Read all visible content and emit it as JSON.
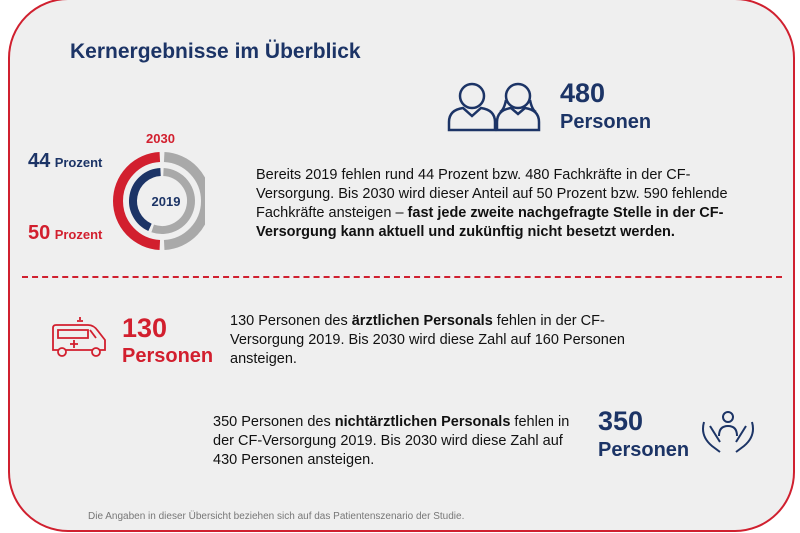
{
  "title": "Kernergebnisse im Überblick",
  "summary": {
    "count": "480",
    "unit": "Personen",
    "donut": {
      "outer_label": "2030",
      "inner_label": "2019",
      "label_2019": {
        "value": "44",
        "unit": "Prozent"
      },
      "label_2030": {
        "value": "50",
        "unit": "Prozent"
      },
      "fraction_2019": 0.44,
      "fraction_2030": 0.5
    },
    "text": "Bereits 2019 fehlen rund 44 Prozent bzw. 480 Fachkräfte in der CF-Versorgung. Bis 2030 wird dieser Anteil auf 50 Prozent bzw. 590 fehlende Fachkräfte ansteigen – ",
    "text_bold": "fast jede zweite nachgefragte Stelle in der CF-Versorgung kann aktuell und zukünftig nicht besetzt werden."
  },
  "aerztlich": {
    "count": "130",
    "unit": "Personen",
    "text1": "130 Personen des ",
    "bold": "ärztlichen Personals",
    "text2": " fehlen in der CF-Versorgung 2019. Bis 2030 wird diese Zahl auf 160 Personen ansteigen."
  },
  "nichtaerztlich": {
    "count": "350",
    "unit": "Personen",
    "text1": "350 Personen des ",
    "bold": "nichtärztlichen Personals",
    "text2": " fehlen in der CF-Versorgung 2019. Bis 2030 wird diese Zahl auf 430 Personen ansteigen."
  },
  "footnote": "Die Angaben in dieser Übersicht beziehen sich auf das Patientenszenario der Studie.",
  "colors": {
    "navy": "#1c3466",
    "red": "#d21f2e",
    "grey": "#a9a9a9"
  }
}
